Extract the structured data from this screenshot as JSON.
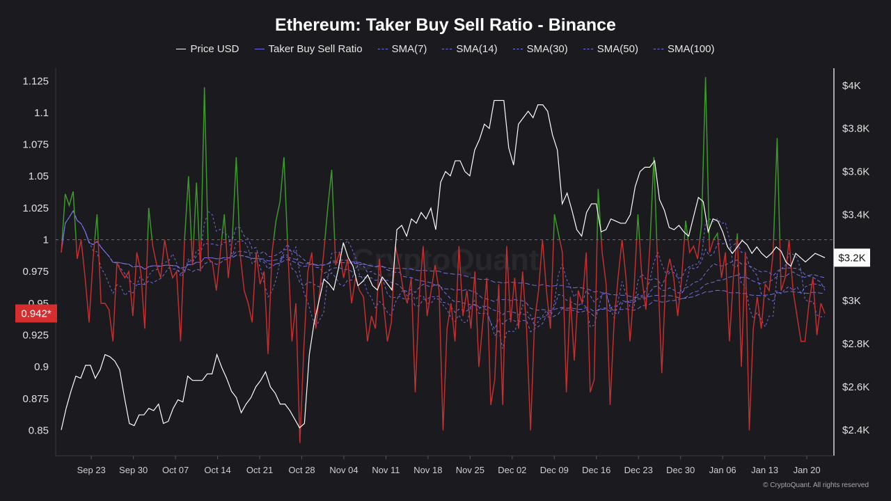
{
  "chart_data": {
    "type": "line",
    "title": "Ethereum: Taker Buy Sell Ratio - Binance",
    "legend_placement": "top",
    "grid": false,
    "x_ticks": [
      "Sep 23",
      "Sep 30",
      "Oct 07",
      "Oct 14",
      "Oct 21",
      "Oct 28",
      "Nov 04",
      "Nov 11",
      "Nov 18",
      "Nov 25",
      "Dec 02",
      "Dec 09",
      "Dec 16",
      "Dec 23",
      "Dec 30",
      "Jan 06",
      "Jan 13",
      "Jan 20"
    ],
    "x_start": "2024-09-18",
    "x_end": "2025-01-23",
    "y_left": {
      "ylim": [
        0.83,
        1.135
      ],
      "ticks": [
        "1.125",
        "1.1",
        "1.075",
        "1.05",
        "1.025",
        "1",
        "0.975",
        "0.95",
        "0.925",
        "0.9",
        "0.875",
        "0.85"
      ],
      "reference_line": 1
    },
    "y_right": {
      "ylim": [
        2.28,
        4.08
      ],
      "ticks": [
        "$4K",
        "$3.8K",
        "$3.6K",
        "$3.4K",
        "$3.2K",
        "$3K",
        "$2.8K",
        "$2.6K",
        "$2.4K"
      ],
      "tick_values": [
        4.0,
        3.8,
        3.6,
        3.4,
        3.2,
        3.0,
        2.8,
        2.6,
        2.4
      ]
    },
    "current_ratio_label": "0.942*",
    "current_price_label": "$3.2K",
    "colors": {
      "price": "#ffffff",
      "ratio": "#6f6cf2",
      "above_one": "#3c9a2b",
      "below_one": "#c42f2f",
      "sma": "#7a78f0",
      "reference": "#6a6a70",
      "ratio_badge": "#d42e2e",
      "price_badge": "#ffffff"
    },
    "legend": [
      {
        "name": "Price USD",
        "style": "solid",
        "color": "#ffffff"
      },
      {
        "name": "Taker Buy Sell Ratio",
        "style": "solid",
        "color": "#6f6cf2"
      },
      {
        "name": "SMA(7)",
        "style": "dashed",
        "color": "#7a78f0"
      },
      {
        "name": "SMA(14)",
        "style": "dashed",
        "color": "#7a78f0"
      },
      {
        "name": "SMA(30)",
        "style": "dashed",
        "color": "#7a78f0"
      },
      {
        "name": "SMA(50)",
        "style": "dashed",
        "color": "#7a78f0"
      },
      {
        "name": "SMA(100)",
        "style": "dashed",
        "color": "#7a78f0"
      }
    ],
    "ratio_values": [
      0.99,
      1.036,
      1.027,
      1.038,
      0.985,
      1.0,
      0.97,
      0.935,
      0.985,
      1.02,
      0.95,
      0.95,
      0.945,
      0.92,
      0.982,
      0.975,
      0.97,
      0.975,
      0.94,
      0.99,
      0.975,
      0.93,
      1.025,
      0.995,
      0.98,
      0.97,
      1.0,
      0.982,
      0.97,
      0.975,
      0.92,
      1.0,
      1.05,
      0.98,
      1.045,
      0.975,
      1.12,
      0.985,
      0.982,
      0.96,
      0.99,
      1.02,
      0.97,
      1.0,
      1.065,
      0.988,
      0.96,
      0.95,
      0.935,
      0.99,
      0.965,
      0.975,
      0.91,
      0.99,
      1.015,
      1.03,
      1.065,
      0.99,
      0.92,
      0.95,
      0.84,
      0.915,
      0.975,
      0.99,
      0.93,
      0.96,
      0.99,
      1.025,
      1.055,
      0.98,
      0.99,
      0.97,
      0.985,
      0.95,
      0.97,
      0.96,
      0.955,
      0.92,
      0.94,
      0.93,
      0.985,
      0.95,
      0.92,
      0.935,
      0.995,
      0.98,
      0.96,
      0.95,
      0.97,
      0.88,
      0.955,
      0.995,
      0.94,
      0.96,
      0.98,
      0.96,
      0.85,
      0.93,
      0.95,
      0.92,
      0.995,
      0.94,
      0.96,
      0.93,
      0.975,
      0.9,
      0.935,
      0.97,
      0.87,
      0.89,
      0.965,
      0.87,
      0.995,
      0.935,
      0.97,
      0.93,
      0.975,
      0.93,
      0.85,
      0.935,
      0.96,
      1.0,
      0.96,
      0.93,
      1.02,
      1.005,
      0.99,
      0.88,
      0.955,
      0.905,
      0.96,
      0.95,
      0.99,
      0.88,
      0.89,
      1.04,
      0.99,
      0.965,
      0.87,
      0.935,
      0.97,
      1.0,
      0.97,
      0.92,
      0.96,
      1.02,
      0.97,
      0.945,
      0.995,
      1.065,
      0.975,
      0.895,
      0.97,
      0.985,
      0.97,
      0.94,
      0.97,
      1.015,
      0.99,
      0.995,
      0.985,
      1.012,
      1.128,
      0.99,
      1.0,
      1.005,
      0.97,
      0.99,
      0.92,
      0.97,
      1.005,
      0.9,
      0.99,
      0.85,
      0.93,
      0.955,
      0.93,
      0.965,
      0.96,
      0.99,
      1.08,
      0.96,
      0.97,
      1.0,
      0.96,
      0.94,
      0.92,
      0.92,
      0.95,
      0.97,
      0.925,
      0.95,
      0.942
    ],
    "price_values": [
      2.4,
      2.5,
      2.58,
      2.65,
      2.64,
      2.7,
      2.7,
      2.64,
      2.68,
      2.75,
      2.74,
      2.72,
      2.68,
      2.55,
      2.43,
      2.42,
      2.47,
      2.47,
      2.5,
      2.49,
      2.52,
      2.43,
      2.44,
      2.5,
      2.54,
      2.53,
      2.65,
      2.63,
      2.63,
      2.63,
      2.66,
      2.66,
      2.75,
      2.69,
      2.64,
      2.58,
      2.55,
      2.48,
      2.52,
      2.55,
      2.6,
      2.63,
      2.67,
      2.6,
      2.57,
      2.52,
      2.52,
      2.49,
      2.45,
      2.41,
      2.43,
      2.75,
      2.9,
      3.0,
      3.1,
      3.08,
      3.05,
      3.15,
      3.27,
      3.2,
      3.16,
      3.07,
      3.09,
      3.12,
      3.07,
      3.05,
      3.11,
      3.08,
      3.05,
      3.33,
      3.35,
      3.3,
      3.38,
      3.36,
      3.41,
      3.38,
      3.43,
      3.33,
      3.55,
      3.6,
      3.58,
      3.65,
      3.65,
      3.6,
      3.58,
      3.7,
      3.75,
      3.82,
      3.8,
      3.93,
      3.93,
      3.93,
      3.71,
      3.63,
      3.82,
      3.85,
      3.88,
      3.85,
      3.91,
      3.91,
      3.88,
      3.77,
      3.7,
      3.45,
      3.5,
      3.42,
      3.33,
      3.3,
      3.41,
      3.45,
      3.45,
      3.32,
      3.33,
      3.38,
      3.37,
      3.36,
      3.36,
      3.4,
      3.53,
      3.6,
      3.62,
      3.62,
      3.65,
      3.47,
      3.42,
      3.34,
      3.33,
      3.35,
      3.32,
      3.3,
      3.39,
      3.48,
      3.46,
      3.32,
      3.38,
      3.37,
      3.32,
      3.25,
      3.22,
      3.25,
      3.28,
      3.26,
      3.22,
      3.25,
      3.22,
      3.2,
      3.22,
      3.25,
      3.23,
      3.18,
      3.16,
      3.22,
      3.2,
      3.18,
      3.2,
      3.22,
      3.21,
      3.2
    ]
  },
  "footer": "© CryptoQuant. All rights reserved"
}
